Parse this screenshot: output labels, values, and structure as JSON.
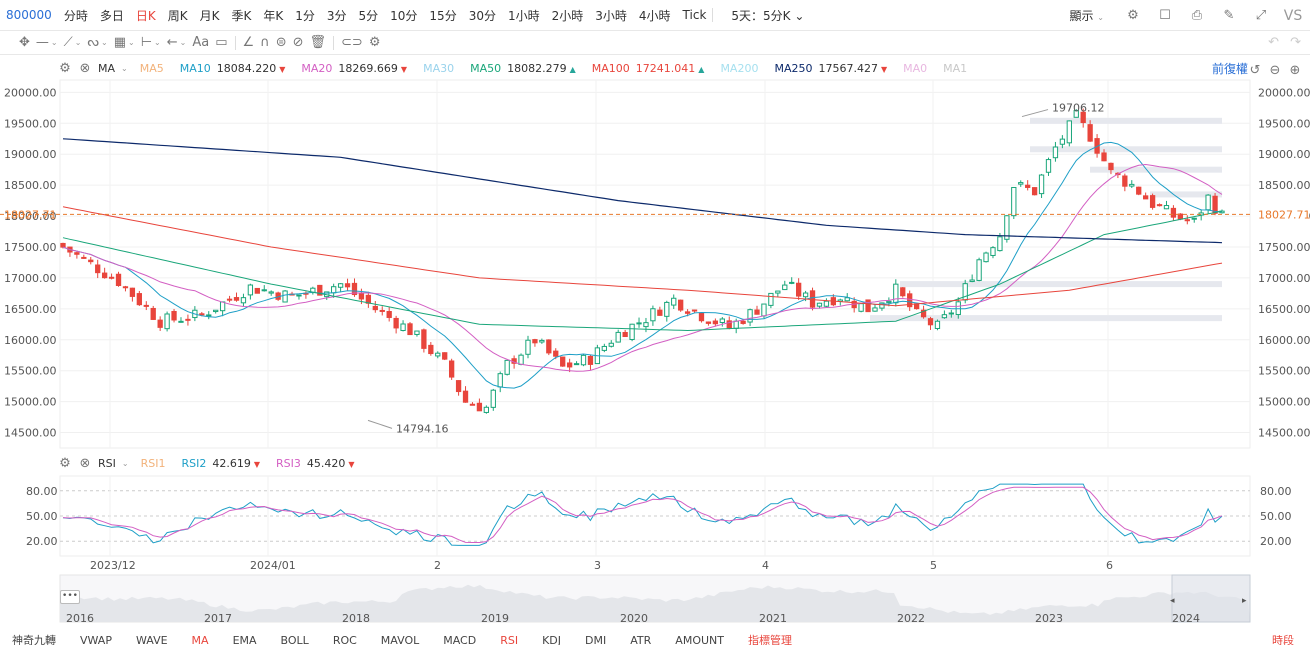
{
  "toolbar": {
    "symbol": "800000",
    "timeframes": [
      "分時",
      "多日",
      "日K",
      "周K",
      "月K",
      "季K",
      "年K",
      "1分",
      "3分",
      "5分",
      "10分",
      "15分",
      "30分",
      "1小時",
      "2小時",
      "3小時",
      "4小時",
      "Tick",
      "5天：5分K"
    ],
    "active_timeframe": "日K",
    "display_label": "顯示",
    "right_icons": [
      "gear-icon",
      "square-icon",
      "camera-icon",
      "pen-icon",
      "fullscreen-icon",
      "vs-icon"
    ],
    "vs_label": "VS"
  },
  "drawing_tools": [
    "crosshair-icon",
    "line-icon",
    "trendline-icon",
    "fib-icon",
    "grid-icon",
    "measure-icon",
    "arrow-icon",
    "text-icon",
    "comment-icon",
    "ruler-icon",
    "magnet-icon",
    "lock-icon",
    "hide-icon",
    "trash-icon",
    "link-icon",
    "settings-icon"
  ],
  "text_tool_label": "Aa",
  "ma_legend": {
    "title": "MA",
    "items": [
      {
        "name": "MA5",
        "value": "",
        "color": "#f2b27a",
        "dir": ""
      },
      {
        "name": "MA10",
        "value": "18084.220",
        "color": "#1e9fc7",
        "dir": "down"
      },
      {
        "name": "MA20",
        "value": "18269.669",
        "color": "#d35fc3",
        "dir": "down"
      },
      {
        "name": "MA30",
        "value": "",
        "color": "#9ad3ec",
        "dir": ""
      },
      {
        "name": "MA50",
        "value": "18082.279",
        "color": "#1aa67a",
        "dir": "up"
      },
      {
        "name": "MA100",
        "value": "17241.041",
        "color": "#e8453c",
        "dir": "up"
      },
      {
        "name": "MA200",
        "value": "",
        "color": "#a6e0ef",
        "dir": ""
      },
      {
        "name": "MA250",
        "value": "17567.427",
        "color": "#0d2a6b",
        "dir": "down"
      },
      {
        "name": "MA0",
        "value": "",
        "color": "#e8b7e0",
        "dir": ""
      },
      {
        "name": "MA1",
        "value": "",
        "color": "#c8c8c8",
        "dir": ""
      }
    ]
  },
  "restore_label": "前復權",
  "rsi_legend": {
    "title": "RSI",
    "items": [
      {
        "name": "RSI1",
        "value": "",
        "color": "#f2b27a",
        "dir": ""
      },
      {
        "name": "RSI2",
        "value": "42.619",
        "color": "#1e9fc7",
        "dir": "down"
      },
      {
        "name": "RSI3",
        "value": "45.420",
        "color": "#d35fc3",
        "dir": "down"
      }
    ]
  },
  "chart_data": {
    "type": "candlestick",
    "y_ticks": [
      "20000.00",
      "19500.00",
      "19000.00",
      "18500.00",
      "18000.00",
      "17500.00",
      "17000.00",
      "16500.00",
      "16000.00",
      "15500.00",
      "15000.00",
      "14500.00"
    ],
    "ylim": [
      14250,
      20200
    ],
    "current_price": "18027.71",
    "high_label": "19706.12",
    "low_label": "14794.16",
    "x_labels": [
      "2023/12",
      "2024/01",
      "2",
      "3",
      "4",
      "5",
      "6"
    ],
    "rsi_ticks": [
      "80.00",
      "50.00",
      "20.00"
    ],
    "navigator_years": [
      "2016",
      "2017",
      "2018",
      "2019",
      "2020",
      "2021",
      "2022",
      "2023",
      "2024"
    ]
  },
  "indicators": [
    "神奇九轉",
    "VWAP",
    "WAVE",
    "MA",
    "EMA",
    "BOLL",
    "ROC",
    "MAVOL",
    "MACD",
    "RSI",
    "KDJ",
    "DMI",
    "ATR",
    "AMOUNT",
    "指標管理"
  ],
  "active_indicators": [
    "MA",
    "RSI"
  ],
  "right_bottom_label": "時段"
}
